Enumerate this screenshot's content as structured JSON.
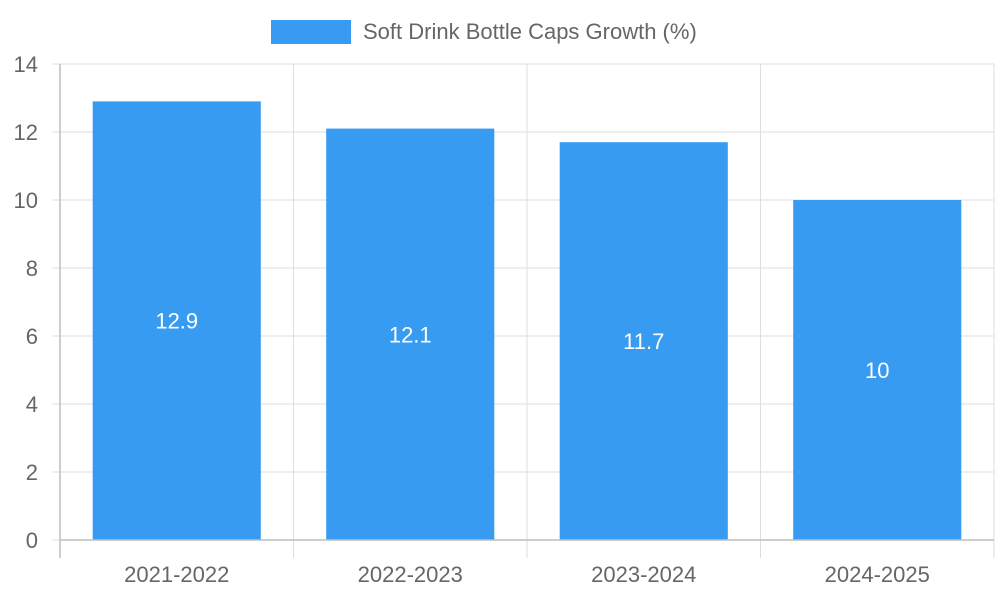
{
  "chart_data": {
    "type": "bar",
    "categories": [
      "2021-2022",
      "2022-2023",
      "2023-2024",
      "2024-2025"
    ],
    "series": [
      {
        "name": "Soft Drink Bottle Caps Growth (%)",
        "values": [
          12.9,
          12.1,
          11.7,
          10
        ]
      }
    ],
    "ylim": [
      0,
      14
    ],
    "yticks": [
      0,
      2,
      4,
      6,
      8,
      10,
      12,
      14
    ],
    "grid": true,
    "legend_position": "top",
    "data_labels": [
      "12.9",
      "12.1",
      "11.7",
      "10"
    ],
    "colors": {
      "bar": "#389bf2",
      "grid": "#dedede",
      "axis": "#bdbdbd",
      "tick_text": "#666666",
      "data_label": "#ffffff",
      "legend_text": "#666666"
    }
  }
}
